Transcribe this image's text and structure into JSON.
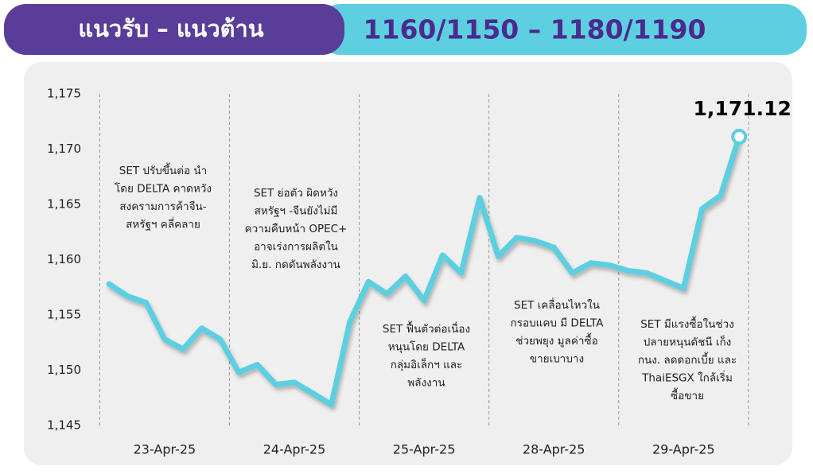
{
  "header": {
    "title": "แนวรับ – แนวต้าน",
    "range": "1160/1150 – 1180/1190"
  },
  "chart_data": {
    "type": "line",
    "categories": [
      null,
      null,
      null,
      "23-Apr-25",
      null,
      null,
      null,
      null,
      null,
      null,
      "24-Apr-25",
      null,
      null,
      null,
      null,
      null,
      null,
      "25-Apr-25",
      null,
      null,
      null,
      null,
      null,
      null,
      "28-Apr-25",
      null,
      null,
      null,
      null,
      null,
      null,
      "29-Apr-25",
      null,
      null,
      null
    ],
    "values": [
      1157.8,
      1156.7,
      1156.1,
      1152.8,
      1151.9,
      1153.8,
      1152.8,
      1149.8,
      1150.5,
      1148.7,
      1148.9,
      1147.9,
      1146.9,
      1154.4,
      1158.0,
      1156.9,
      1158.5,
      1156.3,
      1160.4,
      1158.8,
      1165.6,
      1160.3,
      1162.0,
      1161.7,
      1161.1,
      1158.8,
      1159.7,
      1159.5,
      1159.0,
      1158.8,
      1158.1,
      1157.4,
      1164.6,
      1165.8,
      1171.12
    ],
    "value_labels": [
      null,
      null,
      null,
      null,
      null,
      null,
      null,
      null,
      null,
      null,
      null,
      null,
      null,
      null,
      null,
      null,
      null,
      null,
      null,
      null,
      null,
      null,
      null,
      null,
      null,
      null,
      null,
      null,
      null,
      null,
      null,
      null,
      null,
      null,
      "1,171.12"
    ],
    "color": "#5ccfe0",
    "ylim": [
      1145,
      1175
    ],
    "yticks": [
      {
        "value": 1145,
        "label": "1,145"
      },
      {
        "value": 1150,
        "label": "1,150"
      },
      {
        "value": 1155,
        "label": "1,155"
      },
      {
        "value": 1160,
        "label": "1,160"
      },
      {
        "value": 1165,
        "label": "1,165"
      },
      {
        "value": 1170,
        "label": "1,170"
      },
      {
        "value": 1175,
        "label": "1,175"
      }
    ],
    "annotations": [
      [
        "SET ปรับขึ้นต่อ นำ",
        "โดย DELTA คาดหวัง",
        "สงครามการค้าจีน-",
        "สหรัฐฯ คลี่คลาย"
      ],
      [
        "SET ย่อตัว ผิดหวัง",
        "สหรัฐฯ -จีนยังไม่มี",
        "ความคืบหน้า OPEC+",
        "อาจเร่งการผลิตใน",
        "มิ.ย. กดดันพลังงาน"
      ],
      [
        "SET ฟื้นตัวต่อเนื่อง",
        "หนุนโดย DELTA",
        "กลุ่มอิเล็กฯ และ",
        "พลังงาน"
      ],
      [
        "SET เคลื่อนไหวใน",
        "กรอบแคบ มี DELTA",
        "ช่วยพยุง มูลค่าซื้อ",
        "ขายเบาบาง"
      ],
      [
        "SET มีแรงซื้อในช่วง",
        "ปลายหนุนดัชนี เก็ง",
        "กนง. ลดดอกเบี้ย และ",
        "ThaiESGX ใกล้เริ่ม",
        "ซื้อขาย"
      ]
    ]
  }
}
